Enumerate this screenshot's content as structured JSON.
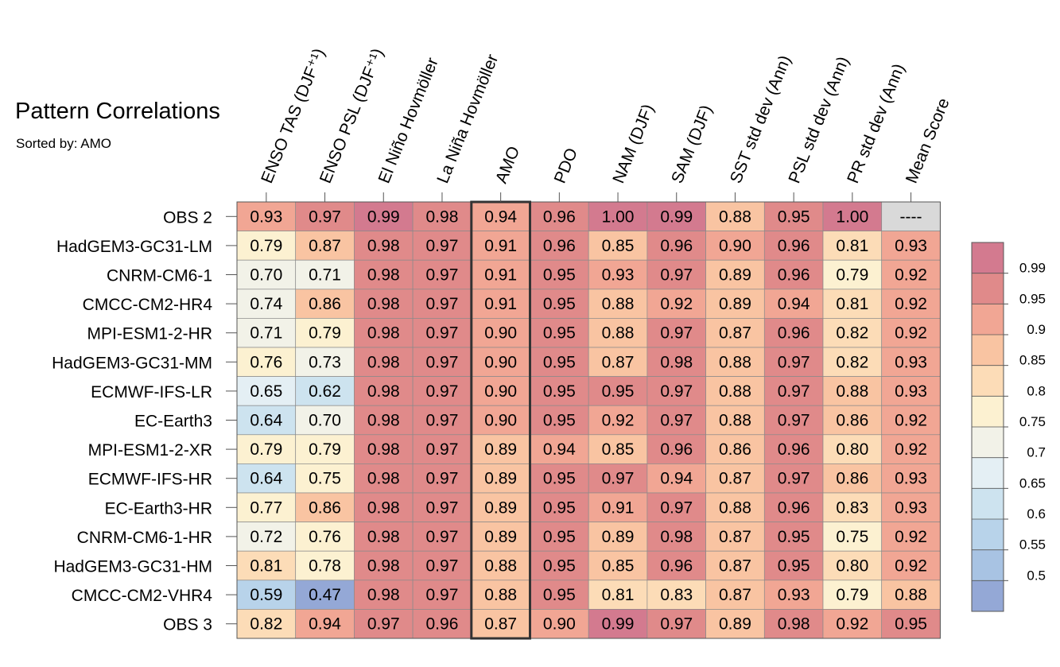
{
  "title": "Pattern Correlations",
  "subtitle": "Sorted by: AMO",
  "chart_data": {
    "type": "heatmap",
    "title": "Pattern Correlations",
    "subtitle": "Sorted by: AMO",
    "columns": [
      "ENSO TAS (DJF⁺¹)",
      "ENSO PSL (DJF⁺¹)",
      "El Niño Hovmöller",
      "La Niña Hovmöller",
      "AMO",
      "PDO",
      "NAM (DJF)",
      "SAM (DJF)",
      "SST std dev (Ann)",
      "PSL std dev (Ann)",
      "PR std dev (Ann)",
      "Mean Score"
    ],
    "rows": [
      "OBS 2",
      "HadGEM3-GC31-LM",
      "CNRM-CM6-1",
      "CMCC-CM2-HR4",
      "MPI-ESM1-2-HR",
      "HadGEM3-GC31-MM",
      "ECMWF-IFS-LR",
      "EC-Earth3",
      "MPI-ESM1-2-XR",
      "ECMWF-IFS-HR",
      "EC-Earth3-HR",
      "CNRM-CM6-1-HR",
      "HadGEM3-GC31-HM",
      "CMCC-CM2-VHR4",
      "OBS 3"
    ],
    "values": [
      [
        "0.93",
        "0.97",
        "0.99",
        "0.98",
        "0.94",
        "0.96",
        "1.00",
        "0.99",
        "0.88",
        "0.95",
        "1.00",
        "----"
      ],
      [
        "0.79",
        "0.87",
        "0.98",
        "0.97",
        "0.91",
        "0.96",
        "0.85",
        "0.96",
        "0.90",
        "0.96",
        "0.81",
        "0.93"
      ],
      [
        "0.70",
        "0.71",
        "0.98",
        "0.97",
        "0.91",
        "0.95",
        "0.93",
        "0.97",
        "0.89",
        "0.96",
        "0.79",
        "0.92"
      ],
      [
        "0.74",
        "0.86",
        "0.98",
        "0.97",
        "0.91",
        "0.95",
        "0.88",
        "0.92",
        "0.89",
        "0.94",
        "0.81",
        "0.92"
      ],
      [
        "0.71",
        "0.79",
        "0.98",
        "0.97",
        "0.90",
        "0.95",
        "0.88",
        "0.97",
        "0.87",
        "0.96",
        "0.82",
        "0.92"
      ],
      [
        "0.76",
        "0.73",
        "0.98",
        "0.97",
        "0.90",
        "0.95",
        "0.87",
        "0.98",
        "0.88",
        "0.97",
        "0.82",
        "0.93"
      ],
      [
        "0.65",
        "0.62",
        "0.98",
        "0.97",
        "0.90",
        "0.95",
        "0.95",
        "0.97",
        "0.88",
        "0.97",
        "0.88",
        "0.93"
      ],
      [
        "0.64",
        "0.70",
        "0.98",
        "0.97",
        "0.90",
        "0.95",
        "0.92",
        "0.97",
        "0.88",
        "0.97",
        "0.86",
        "0.92"
      ],
      [
        "0.79",
        "0.79",
        "0.98",
        "0.97",
        "0.89",
        "0.94",
        "0.85",
        "0.96",
        "0.86",
        "0.96",
        "0.80",
        "0.92"
      ],
      [
        "0.64",
        "0.75",
        "0.98",
        "0.97",
        "0.89",
        "0.95",
        "0.97",
        "0.94",
        "0.87",
        "0.97",
        "0.86",
        "0.93"
      ],
      [
        "0.77",
        "0.86",
        "0.98",
        "0.97",
        "0.89",
        "0.95",
        "0.91",
        "0.97",
        "0.88",
        "0.96",
        "0.83",
        "0.93"
      ],
      [
        "0.72",
        "0.76",
        "0.98",
        "0.97",
        "0.89",
        "0.95",
        "0.89",
        "0.98",
        "0.87",
        "0.95",
        "0.75",
        "0.92"
      ],
      [
        "0.81",
        "0.78",
        "0.98",
        "0.97",
        "0.88",
        "0.95",
        "0.85",
        "0.96",
        "0.87",
        "0.95",
        "0.80",
        "0.92"
      ],
      [
        "0.59",
        "0.47",
        "0.98",
        "0.97",
        "0.88",
        "0.95",
        "0.81",
        "0.83",
        "0.87",
        "0.93",
        "0.79",
        "0.88"
      ],
      [
        "0.82",
        "0.94",
        "0.97",
        "0.96",
        "0.87",
        "0.90",
        "0.99",
        "0.97",
        "0.89",
        "0.98",
        "0.92",
        "0.95"
      ]
    ],
    "highlighted_column": "AMO",
    "missing_color": "#d9d9d9",
    "colorbar": {
      "ticks": [
        "0.99",
        "0.95",
        "0.9",
        "0.85",
        "0.8",
        "0.75",
        "0.7",
        "0.65",
        "0.6",
        "0.55",
        "0.5"
      ],
      "bins": [
        {
          "min": 0.99,
          "color": "#d37a8f"
        },
        {
          "min": 0.95,
          "color": "#e08a8a"
        },
        {
          "min": 0.9,
          "color": "#f1a694"
        },
        {
          "min": 0.85,
          "color": "#f9c4a2"
        },
        {
          "min": 0.8,
          "color": "#fcdcb7"
        },
        {
          "min": 0.75,
          "color": "#fcf1d1"
        },
        {
          "min": 0.7,
          "color": "#f2f2e8"
        },
        {
          "min": 0.65,
          "color": "#e4eff4"
        },
        {
          "min": 0.6,
          "color": "#cde3ef"
        },
        {
          "min": 0.55,
          "color": "#b8d3ea"
        },
        {
          "min": 0.5,
          "color": "#a8c3e3"
        },
        {
          "min": 0.0,
          "color": "#94a8d6"
        }
      ]
    }
  }
}
